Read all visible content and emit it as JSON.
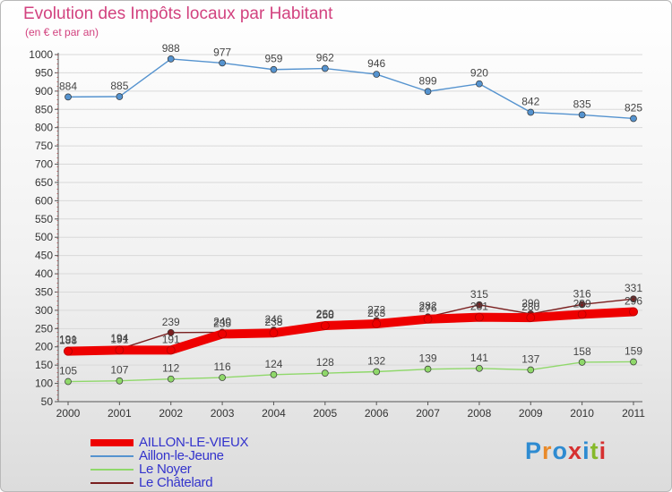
{
  "title": "Evolution des Impôts locaux par Habitant",
  "subtitle": "(en € et par an)",
  "logo": {
    "text": "Proxiti",
    "colors": [
      "#2e8bd1",
      "#e98a2a",
      "#2e8bd1",
      "#d63030",
      "#2e8bd1",
      "#86b92a",
      "#d63030"
    ]
  },
  "chart_data": {
    "type": "line",
    "title": "Evolution des Impôts locaux par Habitant",
    "xlabel": "",
    "ylabel": "(en € et par an)",
    "x": [
      "2000",
      "2001",
      "2002",
      "2003",
      "2004",
      "2005",
      "2006",
      "2007",
      "2008",
      "2009",
      "2010",
      "2011"
    ],
    "yticks": [
      50,
      100,
      150,
      200,
      250,
      300,
      350,
      400,
      450,
      500,
      550,
      600,
      650,
      700,
      750,
      800,
      850,
      900,
      950,
      1000
    ],
    "ylim": [
      50,
      1000
    ],
    "series": [
      {
        "name": "AILLON-LE-VIEUX",
        "color": "#ee0000",
        "values": [
          188,
          191,
          191,
          235,
          238,
          258,
          263,
          276,
          281,
          280,
          289,
          296
        ]
      },
      {
        "name": "Aillon-le-Jeune",
        "color": "#5593cf",
        "values": [
          884,
          885,
          988,
          977,
          959,
          962,
          946,
          899,
          920,
          842,
          835,
          825
        ]
      },
      {
        "name": "Le Noyer",
        "color": "#8fd86a",
        "values": [
          105,
          107,
          112,
          116,
          124,
          128,
          132,
          139,
          141,
          137,
          158,
          159
        ]
      },
      {
        "name": "Le Châtelard",
        "color": "#7a1f1f",
        "values": [
          191,
          194,
          239,
          240,
          246,
          260,
          272,
          282,
          315,
          290,
          316,
          331
        ]
      }
    ]
  }
}
